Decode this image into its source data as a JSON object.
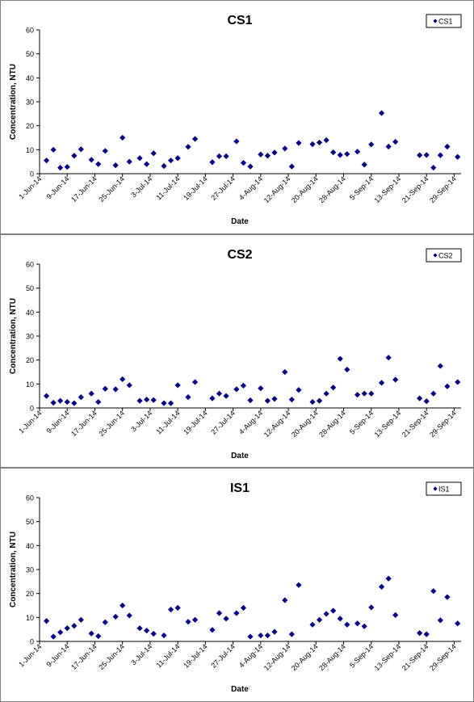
{
  "chart_data": [
    {
      "type": "scatter",
      "title": "CS1",
      "xlabel": "Date",
      "ylabel": "Concentration, NTU",
      "ylim": [
        0,
        60
      ],
      "yticks": [
        0,
        10,
        20,
        30,
        40,
        50,
        60
      ],
      "xlim": [
        "2014-06-01",
        "2014-10-01"
      ],
      "xticks": [
        "2014-06-01",
        "2014-06-09",
        "2014-06-17",
        "2014-06-25",
        "2014-07-03",
        "2014-07-11",
        "2014-07-19",
        "2014-07-27",
        "2014-08-04",
        "2014-08-12",
        "2014-08-20",
        "2014-08-28",
        "2014-09-05",
        "2014-09-13",
        "2014-09-21",
        "2014-09-29"
      ],
      "xtick_labels": [
        "1-Jun-14",
        "9-Jun-14",
        "17-Jun-14",
        "25-Jun-14",
        "3-Jul-14",
        "11-Jul-14",
        "19-Jul-14",
        "27-Jul-14",
        "4-Aug-14",
        "12-Aug-14",
        "20-Aug-14",
        "28-Aug-14",
        "5-Sep-14",
        "13-Sep-14",
        "21-Sep-14",
        "29-Sep-14"
      ],
      "grid": false,
      "legend": "top-right",
      "marker_color": "#00008B",
      "series": [
        {
          "name": "CS1",
          "x": [
            "2014-06-03",
            "2014-06-05",
            "2014-06-07",
            "2014-06-09",
            "2014-06-11",
            "2014-06-13",
            "2014-06-16",
            "2014-06-18",
            "2014-06-20",
            "2014-06-23",
            "2014-06-25",
            "2014-06-27",
            "2014-06-30",
            "2014-07-02",
            "2014-07-04",
            "2014-07-07",
            "2014-07-09",
            "2014-07-11",
            "2014-07-14",
            "2014-07-16",
            "2014-07-21",
            "2014-07-23",
            "2014-07-25",
            "2014-07-28",
            "2014-07-30",
            "2014-08-01",
            "2014-08-04",
            "2014-08-06",
            "2014-08-08",
            "2014-08-11",
            "2014-08-13",
            "2014-08-15",
            "2014-08-19",
            "2014-08-21",
            "2014-08-23",
            "2014-08-25",
            "2014-08-27",
            "2014-08-29",
            "2014-09-01",
            "2014-09-03",
            "2014-09-05",
            "2014-09-08",
            "2014-09-10",
            "2014-09-12",
            "2014-09-19",
            "2014-09-21",
            "2014-09-23",
            "2014-09-25",
            "2014-09-27",
            "2014-09-30"
          ],
          "y": [
            5.5,
            10,
            2.5,
            2.8,
            7.5,
            10.2,
            5.8,
            4,
            9.5,
            3.5,
            15,
            5,
            6.5,
            4,
            8.5,
            3.2,
            5.5,
            6.5,
            11.2,
            14.5,
            4.8,
            7.3,
            7.3,
            13.5,
            4.5,
            3,
            8,
            7.5,
            8.8,
            10.5,
            3,
            12.8,
            12.3,
            13,
            14,
            8.9,
            7.8,
            8.2,
            9.2,
            3.8,
            12.2,
            25.3,
            11.3,
            13.3,
            7.7,
            7.8,
            2.5,
            7.7,
            11.3,
            7
          ]
        }
      ]
    },
    {
      "type": "scatter",
      "title": "CS2",
      "xlabel": "Date",
      "ylabel": "Concentration, NTU",
      "ylim": [
        0,
        60
      ],
      "yticks": [
        0,
        10,
        20,
        30,
        40,
        50,
        60
      ],
      "xlim": [
        "2014-06-01",
        "2014-10-01"
      ],
      "xticks": [
        "2014-06-01",
        "2014-06-09",
        "2014-06-17",
        "2014-06-25",
        "2014-07-03",
        "2014-07-11",
        "2014-07-19",
        "2014-07-27",
        "2014-08-04",
        "2014-08-12",
        "2014-08-20",
        "2014-08-28",
        "2014-09-05",
        "2014-09-13",
        "2014-09-21",
        "2014-09-29"
      ],
      "xtick_labels": [
        "1-Jun-14",
        "9-Jun-14",
        "17-Jun-14",
        "25-Jun-14",
        "3-Jul-14",
        "11-Jul-14",
        "19-Jul-14",
        "27-Jul-14",
        "4-Aug-14",
        "12-Aug-14",
        "20-Aug-14",
        "28-Aug-14",
        "5-Sep-14",
        "13-Sep-14",
        "21-Sep-14",
        "29-Sep-14"
      ],
      "grid": false,
      "legend": "top-right",
      "marker_color": "#00008B",
      "series": [
        {
          "name": "CS2",
          "x": [
            "2014-06-03",
            "2014-06-05",
            "2014-06-07",
            "2014-06-09",
            "2014-06-11",
            "2014-06-13",
            "2014-06-16",
            "2014-06-18",
            "2014-06-20",
            "2014-06-23",
            "2014-06-25",
            "2014-06-27",
            "2014-06-30",
            "2014-07-02",
            "2014-07-04",
            "2014-07-07",
            "2014-07-09",
            "2014-07-11",
            "2014-07-14",
            "2014-07-16",
            "2014-07-21",
            "2014-07-23",
            "2014-07-25",
            "2014-07-28",
            "2014-07-30",
            "2014-08-01",
            "2014-08-04",
            "2014-08-06",
            "2014-08-08",
            "2014-08-11",
            "2014-08-13",
            "2014-08-15",
            "2014-08-19",
            "2014-08-21",
            "2014-08-23",
            "2014-08-25",
            "2014-08-27",
            "2014-08-29",
            "2014-09-01",
            "2014-09-03",
            "2014-09-05",
            "2014-09-08",
            "2014-09-10",
            "2014-09-12",
            "2014-09-19",
            "2014-09-21",
            "2014-09-23",
            "2014-09-25",
            "2014-09-27",
            "2014-09-30"
          ],
          "y": [
            5,
            2.2,
            3,
            2.5,
            2,
            4.5,
            6,
            2.5,
            8,
            7.8,
            12,
            9.5,
            3,
            3.5,
            3.3,
            2,
            2,
            9.5,
            4.5,
            10.8,
            4,
            6,
            5,
            7.8,
            9.3,
            3.2,
            8.2,
            3,
            3.8,
            15,
            3.5,
            7.5,
            2.5,
            3,
            6,
            8.5,
            20.5,
            16,
            5.5,
            6,
            6,
            10.5,
            21,
            11.8,
            4,
            2.8,
            6,
            17.5,
            9,
            10.8
          ]
        }
      ]
    },
    {
      "type": "scatter",
      "title": "IS1",
      "xlabel": "Date",
      "ylabel": "Concentration, NTU",
      "ylim": [
        0,
        60
      ],
      "yticks": [
        0,
        10,
        20,
        30,
        40,
        50,
        60
      ],
      "xlim": [
        "2014-06-01",
        "2014-10-01"
      ],
      "xticks": [
        "2014-06-01",
        "2014-06-09",
        "2014-06-17",
        "2014-06-25",
        "2014-07-03",
        "2014-07-11",
        "2014-07-19",
        "2014-07-27",
        "2014-08-04",
        "2014-08-12",
        "2014-08-20",
        "2014-08-28",
        "2014-09-05",
        "2014-09-13",
        "2014-09-21",
        "2014-09-29"
      ],
      "xtick_labels": [
        "1-Jun-14",
        "9-Jun-14",
        "17-Jun-14",
        "25-Jun-14",
        "3-Jul-14",
        "11-Jul-14",
        "19-Jul-14",
        "27-Jul-14",
        "4-Aug-14",
        "12-Aug-14",
        "20-Aug-14",
        "28-Aug-14",
        "5-Sep-14",
        "13-Sep-14",
        "21-Sep-14",
        "29-Sep-14"
      ],
      "grid": false,
      "legend": "top-right",
      "marker_color": "#00008B",
      "series": [
        {
          "name": "IS1",
          "x": [
            "2014-06-03",
            "2014-06-05",
            "2014-06-07",
            "2014-06-09",
            "2014-06-11",
            "2014-06-13",
            "2014-06-16",
            "2014-06-18",
            "2014-06-20",
            "2014-06-23",
            "2014-06-25",
            "2014-06-27",
            "2014-06-30",
            "2014-07-02",
            "2014-07-04",
            "2014-07-07",
            "2014-07-09",
            "2014-07-11",
            "2014-07-14",
            "2014-07-16",
            "2014-07-21",
            "2014-07-23",
            "2014-07-25",
            "2014-07-28",
            "2014-07-30",
            "2014-08-01",
            "2014-08-04",
            "2014-08-06",
            "2014-08-08",
            "2014-08-11",
            "2014-08-13",
            "2014-08-15",
            "2014-08-19",
            "2014-08-21",
            "2014-08-23",
            "2014-08-25",
            "2014-08-27",
            "2014-08-29",
            "2014-09-01",
            "2014-09-03",
            "2014-09-05",
            "2014-09-08",
            "2014-09-10",
            "2014-09-12",
            "2014-09-19",
            "2014-09-21",
            "2014-09-23",
            "2014-09-25",
            "2014-09-27",
            "2014-09-30"
          ],
          "y": [
            8.5,
            2,
            3.8,
            5.5,
            6.5,
            9,
            3.3,
            2.2,
            8,
            10.3,
            15,
            10.8,
            5.5,
            4.5,
            3.2,
            2.5,
            13.3,
            14,
            8.2,
            9,
            4.8,
            11.8,
            9.5,
            11.8,
            14,
            2,
            2.5,
            2.5,
            4,
            17.2,
            3,
            23.5,
            7,
            9,
            11.5,
            12.8,
            9.5,
            7,
            7.5,
            6.3,
            14.2,
            22.8,
            26.2,
            11,
            3.5,
            3,
            21,
            8.8,
            18.5,
            7.5
          ]
        }
      ]
    }
  ]
}
